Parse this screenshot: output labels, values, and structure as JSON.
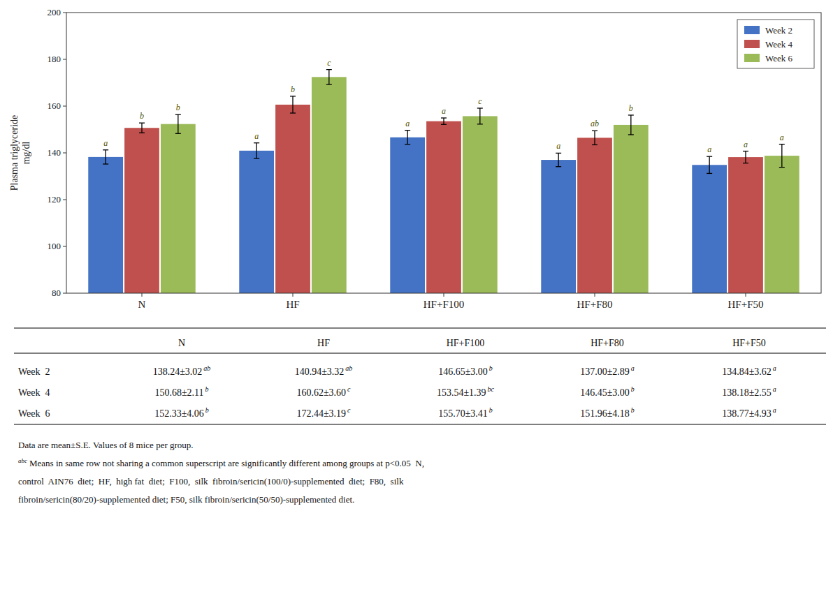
{
  "chart_data": {
    "type": "bar",
    "categories": [
      "N",
      "HF",
      "HF+F100",
      "HF+F80",
      "HF+F50"
    ],
    "series": [
      {
        "name": "Week 2",
        "color": "#4472C4",
        "values": [
          138.24,
          140.94,
          146.65,
          137.0,
          134.84
        ],
        "errors": [
          3.02,
          3.32,
          3.0,
          2.89,
          3.62
        ],
        "sig_labels": [
          "a",
          "a",
          "a",
          "a",
          "a"
        ]
      },
      {
        "name": "Week 4",
        "color": "#C0504D",
        "values": [
          150.68,
          160.62,
          153.54,
          146.45,
          138.18
        ],
        "errors": [
          2.11,
          3.6,
          1.39,
          3.0,
          2.55
        ],
        "sig_labels": [
          "b",
          "b",
          "a",
          "ab",
          "a"
        ]
      },
      {
        "name": "Week 6",
        "color": "#9BBB59",
        "values": [
          152.33,
          172.44,
          155.7,
          151.96,
          138.77
        ],
        "errors": [
          4.06,
          3.19,
          3.41,
          4.18,
          4.93
        ],
        "sig_labels": [
          "b",
          "c",
          "c",
          "b",
          "a"
        ]
      }
    ],
    "ylabel": "Plasma triglyceride\nmg/dl",
    "ylim": [
      80,
      200
    ],
    "yticks": [
      80,
      100,
      120,
      140,
      160,
      180,
      200
    ],
    "grid": false,
    "legend": "upper-right",
    "table": {
      "headers": [
        "N",
        "HF",
        "HF+F100",
        "HF+F80",
        "HF+F50"
      ],
      "rows": [
        {
          "label": "Week  2",
          "cells": [
            "138.24±3.02",
            "140.94±3.32",
            "146.65±3.00",
            "137.00±2.89",
            "134.84±3.62"
          ],
          "superscripts": [
            "ab",
            "ab",
            "b",
            "a",
            "a"
          ]
        },
        {
          "label": "Week  4",
          "cells": [
            "150.68±2.11",
            "160.62±3.60",
            "153.54±1.39",
            "146.45±3.00",
            "138.18±2.55"
          ],
          "superscripts": [
            "b",
            "c",
            "bc",
            "b",
            "a"
          ]
        },
        {
          "label": "Week  6",
          "cells": [
            "152.33±4.06",
            "172.44±3.19",
            "155.70±3.41",
            "151.96±4.18",
            "138.77±4.93"
          ],
          "superscripts": [
            "b",
            "c",
            "b",
            "b",
            "a"
          ]
        }
      ]
    },
    "footnotes": [
      {
        "text": "Data are mean±S.E. Values of 8 mice per group."
      },
      {
        "superscript": "abc",
        "text": "Means in same row not sharing a common superscript are significantly different among groups at p<0.05  N,"
      },
      {
        "text": "control  AIN76  diet;  HF,  high fat  diet;  F100,  silk  fibroin/sericin(100/0)-supplemented  diet;  F80,  silk"
      },
      {
        "text": "fibroin/sericin(80/20)-supplemented diet; F50, silk fibroin/sericin(50/50)-supplemented diet."
      }
    ]
  }
}
